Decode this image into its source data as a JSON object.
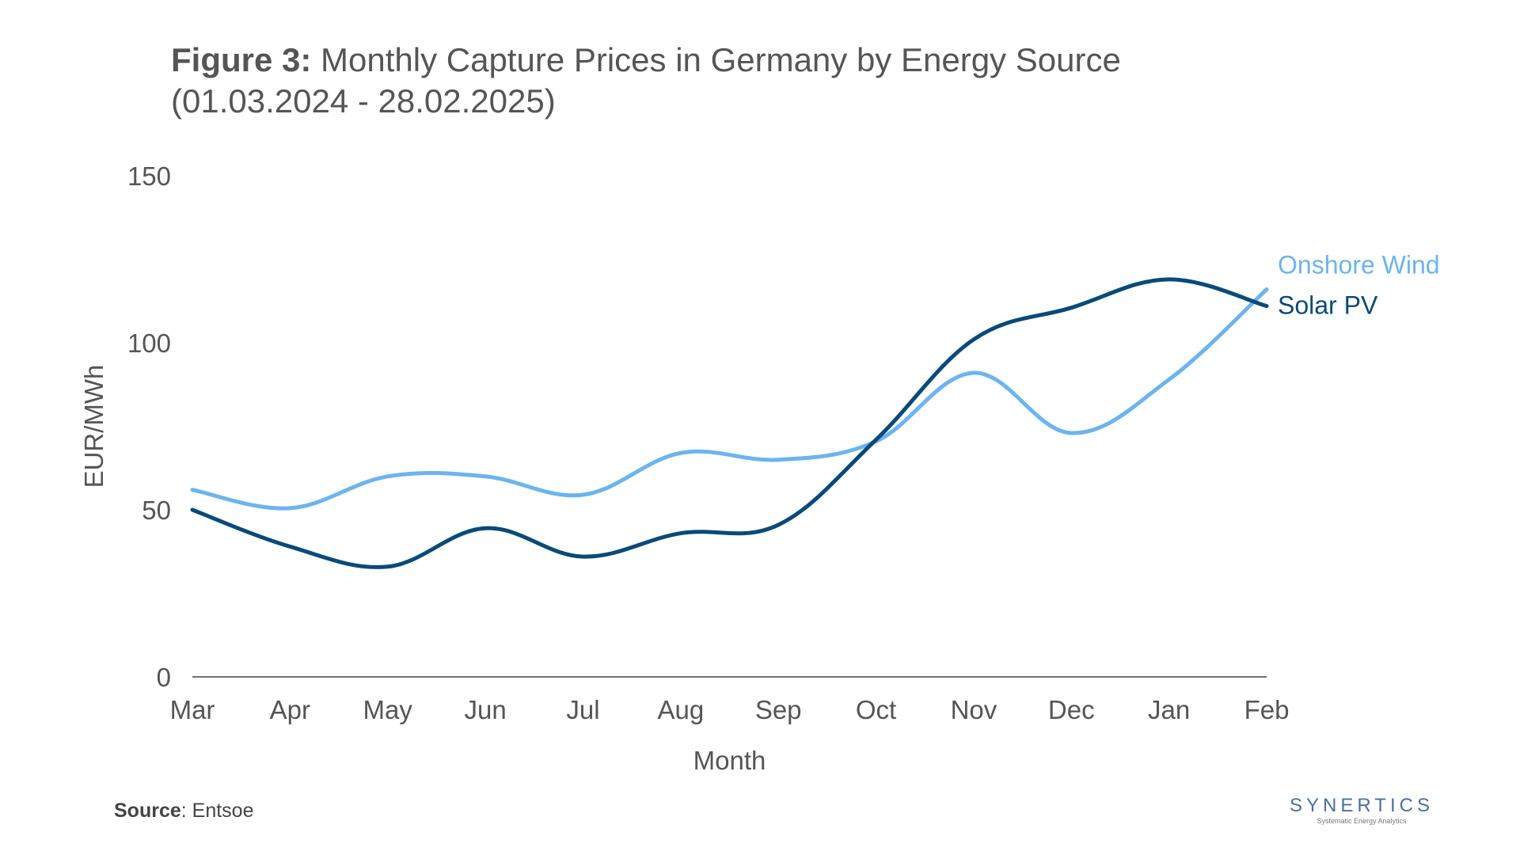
{
  "title": {
    "prefix": "Figure 3:",
    "main": "Monthly Capture Prices in Germany by Energy Source",
    "subtitle": "(01.03.2024 -  28.02.2025)"
  },
  "source": {
    "label": "Source",
    "value": ": Entsoe"
  },
  "logo": {
    "brand": "SYNERTICS",
    "tagline": "Systematic Energy Analytics"
  },
  "chart_data": {
    "type": "line",
    "categories": [
      "Mar",
      "Apr",
      "May",
      "Jun",
      "Jul",
      "Aug",
      "Sep",
      "Oct",
      "Nov",
      "Dec",
      "Jan",
      "Feb"
    ],
    "series": [
      {
        "name": "Onshore Wind",
        "color": "#6cb4f0",
        "values": [
          56,
          50.5,
          60,
          60,
          54.5,
          67,
          65,
          70.5,
          91,
          73,
          89,
          116
        ]
      },
      {
        "name": "Solar PV",
        "color": "#0a4a7a",
        "values": [
          50,
          39,
          33,
          44.5,
          36,
          43,
          45.5,
          71,
          101,
          110.5,
          119,
          111
        ]
      }
    ],
    "xlabel": "Month",
    "ylabel": "EUR/MWh",
    "ylim": [
      0,
      150
    ],
    "yticks": [
      0,
      50,
      100,
      150
    ],
    "grid": false,
    "legend": "inline-right"
  }
}
